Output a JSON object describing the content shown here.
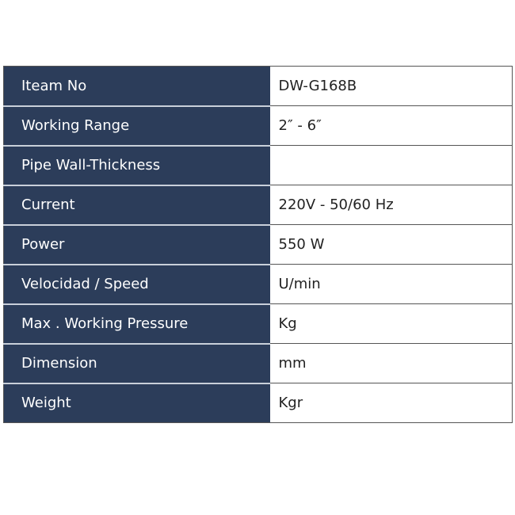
{
  "colors": {
    "label_bg": "#2c3d5a",
    "label_text": "#ffffff",
    "value_bg": "#ffffff"
  },
  "rows": [
    {
      "label": "Iteam No",
      "value": "DW-G168B"
    },
    {
      "label": "Working Range",
      "value": "2″  -  6″"
    },
    {
      "label": "Pipe Wall-Thickness",
      "value": ""
    },
    {
      "label": "Current",
      "value": "220V - 50/60 Hz"
    },
    {
      "label": "Power",
      "value": "550 W"
    },
    {
      "label": "Velocidad / Speed",
      "value": "U/min"
    },
    {
      "label": "Max . Working Pressure",
      "value": "Kg"
    },
    {
      "label": "Dimension",
      "value": "mm"
    },
    {
      "label": "Weight",
      "value": "Kgr"
    }
  ]
}
